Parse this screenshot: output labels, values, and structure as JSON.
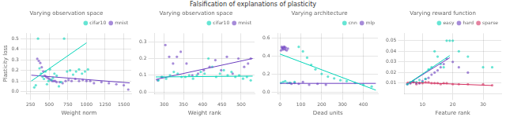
{
  "title": "Falsification of explanations of plasticity",
  "chart_data": [
    {
      "type": "scatter",
      "title": "Varying observation space",
      "x_label": "Weight norm",
      "y_label": "Plasticity loss",
      "xlim": [
        200,
        1600
      ],
      "ylim": [
        -0.02,
        0.55
      ],
      "xticks": [
        250,
        500,
        750,
        1000,
        1250,
        1500
      ],
      "yticks": [
        {
          "value": 0.0,
          "label": "0.0"
        },
        0.1,
        0.2,
        0.3,
        0.4,
        0.5
      ],
      "grid": true,
      "legend": "upper right",
      "series": [
        {
          "name": "cifar10",
          "color": "#00d4b8",
          "x": [
            300,
            320,
            350,
            370,
            390,
            410,
            430,
            450,
            470,
            490,
            510,
            530,
            550,
            570,
            600,
            630,
            660,
            700,
            740,
            780,
            820,
            860,
            900,
            940,
            980,
            1020
          ],
          "values": [
            0.04,
            0.06,
            0.5,
            0.22,
            0.17,
            0.14,
            0.12,
            0.19,
            0.07,
            0.1,
            0.21,
            0.11,
            0.13,
            0.17,
            0.15,
            0.05,
            0.09,
            0.5,
            0.19,
            0.2,
            0.16,
            0.19,
            0.21,
            0.17,
            0.19,
            0.21
          ]
        },
        {
          "name": "mnist",
          "color": "#6a3dbf",
          "x": [
            340,
            360,
            380,
            400,
            420,
            440,
            460,
            480,
            500,
            520,
            540,
            560,
            580,
            600,
            640,
            680,
            720,
            760,
            800,
            850,
            900,
            950,
            1000,
            1050,
            1100,
            1200,
            1300,
            1400,
            1500,
            1560
          ],
          "values": [
            0.31,
            0.29,
            0.27,
            0.23,
            0.19,
            0.15,
            0.14,
            0.13,
            0.12,
            0.11,
            0.1,
            0.1,
            0.1,
            0.09,
            0.09,
            0.08,
            0.1,
            0.11,
            0.1,
            0.12,
            0.1,
            0.11,
            0.1,
            0.1,
            0.08,
            0.09,
            0.08,
            0.07,
            0.06,
            0.02
          ]
        },
        {
          "type": "line",
          "color": "#00d4b8",
          "x": [
            260,
            1000
          ],
          "values": [
            0.1,
            0.46
          ]
        },
        {
          "type": "line",
          "color": "#6a3dbf",
          "x": [
            260,
            1580
          ],
          "values": [
            0.155,
            0.082
          ]
        }
      ]
    },
    {
      "type": "scatter",
      "title": "Varying observation space",
      "x_label": "Weight rank",
      "xlim": [
        275,
        535
      ],
      "ylim": [
        -0.01,
        0.35
      ],
      "xticks": [
        300,
        350,
        400,
        450,
        500
      ],
      "yticks": [
        {
          "value": 0.0,
          "label": "0.0"
        },
        0.1,
        0.2,
        0.3
      ],
      "grid": true,
      "legend": "upper right",
      "series": [
        {
          "name": "cifar10",
          "color": "#00d4b8",
          "x": [
            285,
            295,
            305,
            315,
            325,
            335,
            345,
            355,
            365,
            375,
            385,
            395,
            405,
            415,
            425,
            435,
            445,
            455,
            465,
            475,
            485,
            495,
            505,
            515,
            525
          ],
          "values": [
            0.07,
            0.09,
            0.08,
            0.1,
            0.12,
            0.11,
            0.09,
            0.09,
            0.1,
            0.08,
            0.1,
            0.12,
            0.11,
            0.2,
            0.15,
            0.09,
            0.11,
            0.13,
            0.1,
            0.12,
            0.09,
            0.1,
            0.08,
            0.09,
            0.07
          ]
        },
        {
          "name": "mnist",
          "color": "#6a3dbf",
          "x": [
            283,
            293,
            303,
            313,
            323,
            333,
            343,
            358,
            373,
            388,
            403,
            418,
            433,
            448,
            463,
            478,
            493,
            508,
            518,
            525
          ],
          "values": [
            0.07,
            0.09,
            0.28,
            0.21,
            0.17,
            0.21,
            0.24,
            0.17,
            0.1,
            0.11,
            0.13,
            0.15,
            0.19,
            0.13,
            0.21,
            0.11,
            0.2,
            0.15,
            0.17,
            0.2
          ]
        },
        {
          "type": "line",
          "color": "#00d4b8",
          "x": [
            278,
            530
          ],
          "values": [
            0.09,
            0.095
          ]
        },
        {
          "type": "line",
          "color": "#6a3dbf",
          "x": [
            278,
            530
          ],
          "values": [
            0.075,
            0.2
          ]
        }
      ]
    },
    {
      "type": "scatter",
      "title": "Varying architecture",
      "x_label": "Dead units",
      "xlim": [
        -10,
        470
      ],
      "ylim": [
        -0.02,
        0.65
      ],
      "xticks": [
        0,
        100,
        200,
        300,
        400
      ],
      "yticks": [
        {
          "value": 0.0,
          "label": "0.0"
        },
        0.2,
        0.4,
        0.6
      ],
      "grid": true,
      "legend": "upper right",
      "series": [
        {
          "name": "cnn",
          "color": "#00d4b8",
          "x": [
            5,
            15,
            25,
            35,
            50,
            70,
            90,
            110,
            130,
            150,
            170,
            200,
            230,
            260,
            290,
            320,
            360,
            400,
            440
          ],
          "values": [
            0.1,
            0.11,
            0.12,
            0.1,
            0.1,
            0.11,
            0.5,
            0.45,
            0.38,
            0.3,
            0.25,
            0.2,
            0.17,
            0.15,
            0.13,
            0.12,
            0.1,
            0.08,
            0.06
          ]
        },
        {
          "name": "mlp",
          "color": "#6a3dbf",
          "x": [
            5,
            8,
            10,
            12,
            15,
            18,
            20,
            22,
            25,
            28,
            32,
            38,
            45,
            55,
            70,
            90,
            110,
            140,
            180,
            220
          ],
          "values": [
            0.46,
            0.5,
            0.48,
            0.49,
            0.47,
            0.5,
            0.48,
            0.5,
            0.47,
            0.49,
            0.46,
            0.48,
            0.1,
            0.09,
            0.1,
            0.09,
            0.11,
            0.08,
            0.09,
            0.08
          ]
        },
        {
          "type": "line",
          "color": "#00d4b8",
          "x": [
            0,
            460
          ],
          "values": [
            0.42,
            0.02
          ]
        },
        {
          "type": "line",
          "color": "#6a3dbf",
          "x": [
            0,
            460
          ],
          "values": [
            0.095,
            0.095
          ]
        }
      ]
    },
    {
      "type": "scatter",
      "title": "Varying reward function",
      "x_label": "Feature rank",
      "xlim": [
        4,
        36
      ],
      "ylim": [
        0,
        0.057
      ],
      "xticks": [
        10,
        20,
        30
      ],
      "yticks": [
        0.01,
        0.02,
        0.03,
        0.04,
        0.05
      ],
      "grid": true,
      "legend": "upper right",
      "series": [
        {
          "name": "easy",
          "color": "#00d4b8",
          "x": [
            5,
            6,
            7,
            8,
            9,
            10,
            11,
            12,
            13,
            14,
            15,
            16,
            17,
            18,
            19,
            20,
            22,
            25,
            30,
            33
          ],
          "values": [
            0.009,
            0.011,
            0.012,
            0.011,
            0.013,
            0.011,
            0.014,
            0.023,
            0.025,
            0.04,
            0.035,
            0.028,
            0.025,
            0.05,
            0.05,
            0.05,
            0.04,
            0.035,
            0.025,
            0.025
          ]
        },
        {
          "name": "hard",
          "color": "#6a3dbf",
          "x": [
            5,
            6,
            7,
            8,
            9,
            10,
            11,
            12,
            13,
            14,
            15,
            16,
            17,
            18,
            20,
            22,
            25
          ],
          "values": [
            0.009,
            0.01,
            0.011,
            0.01,
            0.01,
            0.012,
            0.014,
            0.015,
            0.018,
            0.02,
            0.022,
            0.025,
            0.028,
            0.033,
            0.03,
            0.025,
            0.02
          ]
        },
        {
          "name": "sparse",
          "color": "#d43060",
          "x": [
            5,
            6,
            7,
            8,
            9,
            10,
            11,
            12,
            13,
            14,
            15,
            16,
            17,
            18,
            20,
            22,
            25,
            30,
            33
          ],
          "values": [
            0.01,
            0.01,
            0.011,
            0.009,
            0.01,
            0.01,
            0.011,
            0.011,
            0.01,
            0.01,
            0.01,
            0.009,
            0.01,
            0.01,
            0.009,
            0.009,
            0.009,
            0.009,
            0.008
          ]
        },
        {
          "type": "line",
          "color": "#00d4b8",
          "x": [
            5,
            19
          ],
          "values": [
            0.009,
            0.036
          ]
        },
        {
          "type": "line",
          "color": "#6a3dbf",
          "x": [
            5,
            19
          ],
          "values": [
            0.009,
            0.034
          ]
        },
        {
          "type": "line",
          "color": "#d43060",
          "x": [
            5,
            33
          ],
          "values": [
            0.0108,
            0.0078
          ]
        }
      ]
    }
  ]
}
